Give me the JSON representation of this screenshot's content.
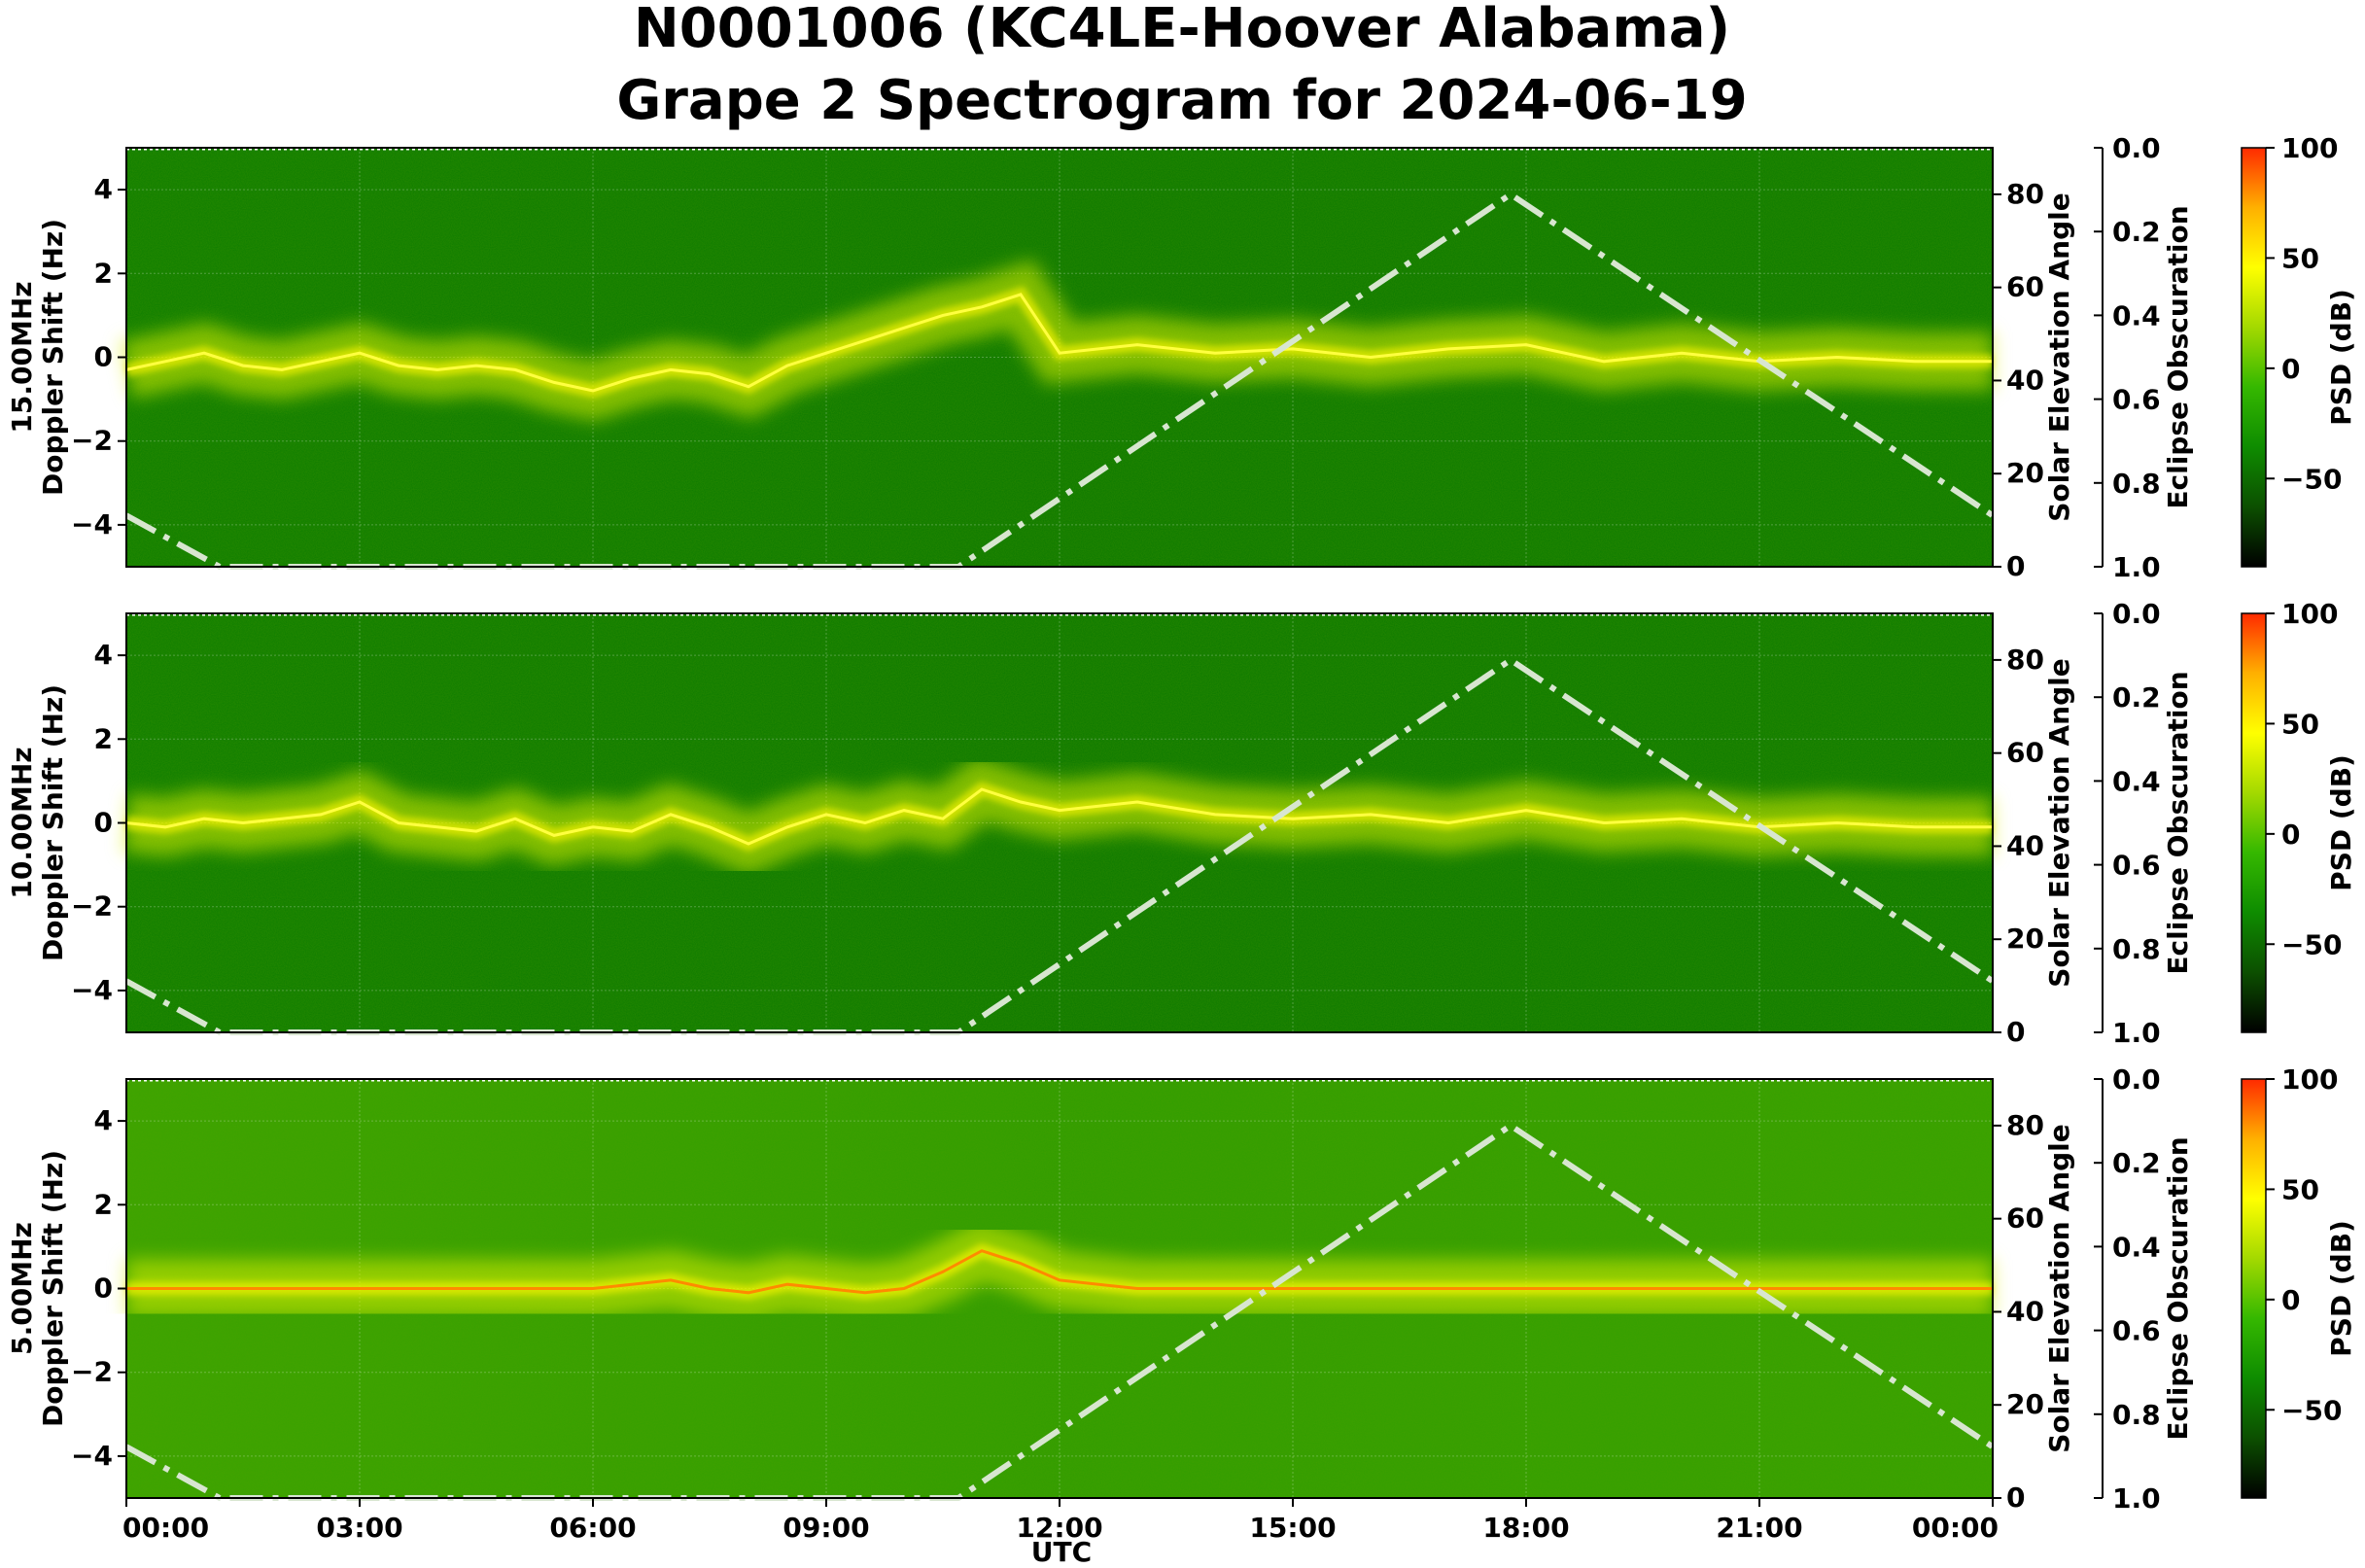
{
  "title": {
    "line1": "N0001006 (KC4LE-Hoover Alabama)",
    "line2": "Grape 2 Spectrogram for 2024-06-19"
  },
  "colors": {
    "background_green": "#0a7a00",
    "signal_yellow": "#f2f200",
    "solar_curve": "#d8e6d0",
    "colorbar": [
      "#000000",
      "#0c4f00",
      "#0e8c00",
      "#35b800",
      "#a3d900",
      "#ffff00",
      "#ffb000",
      "#ff2a00"
    ]
  },
  "chart_data": [
    {
      "type": "heatmap",
      "panel": "15MHz",
      "ylabel_top": "15.00MHz",
      "ylabel": "Doppler Shift (Hz)",
      "right_label": "Solar Elevation Angle",
      "obscuration_label": "Eclipse Obscuration",
      "colorbar_label": "PSD (dB)",
      "background_level": "dark",
      "ylim": [
        -5,
        5
      ],
      "yticks": [
        4,
        2,
        0,
        -2,
        -4
      ],
      "elev_lim": [
        0,
        90
      ],
      "elev_ticks": [
        0,
        20,
        40,
        60,
        80
      ],
      "obsc_lim": [
        0.0,
        1.0
      ],
      "obsc_ticks": [
        "0.0",
        "0.2",
        "0.4",
        "0.6",
        "0.8",
        "1.0"
      ],
      "cbar_lim": [
        -90,
        100
      ],
      "cbar_ticks": [
        100,
        50,
        0,
        -50
      ],
      "doppler_trace": {
        "hours": [
          0,
          0.5,
          1,
          1.5,
          2,
          2.5,
          3,
          3.5,
          4,
          4.5,
          5,
          5.5,
          6,
          6.5,
          7,
          7.5,
          8,
          8.5,
          9,
          9.5,
          10,
          10.5,
          11,
          11.5,
          12,
          13,
          14,
          15,
          16,
          17,
          18,
          19,
          20,
          21,
          22,
          23,
          24
        ],
        "hz": [
          -0.3,
          -0.1,
          0.1,
          -0.2,
          -0.3,
          -0.1,
          0.1,
          -0.2,
          -0.3,
          -0.2,
          -0.3,
          -0.6,
          -0.8,
          -0.5,
          -0.3,
          -0.4,
          -0.7,
          -0.2,
          0.1,
          0.4,
          0.7,
          1.0,
          1.2,
          1.5,
          0.1,
          0.3,
          0.1,
          0.2,
          0.0,
          0.2,
          0.3,
          -0.1,
          0.1,
          -0.1,
          0.0,
          -0.1,
          -0.1
        ]
      },
      "solar_elevation": {
        "hours": [
          0,
          1.2,
          10.7,
          17.8,
          24
        ],
        "deg": [
          11,
          0,
          0,
          80,
          11
        ]
      }
    },
    {
      "type": "heatmap",
      "panel": "10MHz",
      "ylabel_top": "10.00MHz",
      "ylabel": "Doppler Shift (Hz)",
      "right_label": "Solar Elevation Angle",
      "obscuration_label": "Eclipse Obscuration",
      "colorbar_label": "PSD (dB)",
      "background_level": "dark",
      "ylim": [
        -5,
        5
      ],
      "yticks": [
        4,
        2,
        0,
        -2,
        -4
      ],
      "elev_lim": [
        0,
        90
      ],
      "elev_ticks": [
        0,
        20,
        40,
        60,
        80
      ],
      "obsc_lim": [
        0.0,
        1.0
      ],
      "obsc_ticks": [
        "0.0",
        "0.2",
        "0.4",
        "0.6",
        "0.8",
        "1.0"
      ],
      "cbar_lim": [
        -90,
        100
      ],
      "cbar_ticks": [
        100,
        50,
        0,
        -50
      ],
      "doppler_trace": {
        "hours": [
          0,
          0.5,
          1,
          1.5,
          2,
          2.5,
          3,
          3.5,
          4,
          4.5,
          5,
          5.5,
          6,
          6.5,
          7,
          7.5,
          8,
          8.5,
          9,
          9.5,
          10,
          10.5,
          11,
          11.5,
          12,
          13,
          14,
          15,
          16,
          17,
          18,
          19,
          20,
          21,
          22,
          23,
          24
        ],
        "hz": [
          0.0,
          -0.1,
          0.1,
          0.0,
          0.1,
          0.2,
          0.5,
          0.0,
          -0.1,
          -0.2,
          0.1,
          -0.3,
          -0.1,
          -0.2,
          0.2,
          -0.1,
          -0.5,
          -0.1,
          0.2,
          0.0,
          0.3,
          0.1,
          0.8,
          0.5,
          0.3,
          0.5,
          0.2,
          0.1,
          0.2,
          0.0,
          0.3,
          0.0,
          0.1,
          -0.1,
          0.0,
          -0.1,
          -0.1
        ]
      },
      "solar_elevation": {
        "hours": [
          0,
          1.2,
          10.7,
          17.8,
          24
        ],
        "deg": [
          11,
          0,
          0,
          80,
          11
        ]
      }
    },
    {
      "type": "heatmap",
      "panel": "5MHz",
      "ylabel_top": "5.00MHz",
      "ylabel": "Doppler Shift (Hz)",
      "right_label": "Solar Elevation Angle",
      "obscuration_label": "Eclipse Obscuration",
      "colorbar_label": "PSD (dB)",
      "background_level": "light",
      "ylim": [
        -5,
        5
      ],
      "yticks": [
        4,
        2,
        0,
        -2,
        -4
      ],
      "elev_lim": [
        0,
        90
      ],
      "elev_ticks": [
        0,
        20,
        40,
        60,
        80
      ],
      "obsc_lim": [
        0.0,
        1.0
      ],
      "obsc_ticks": [
        "0.0",
        "0.2",
        "0.4",
        "0.6",
        "0.8",
        "1.0"
      ],
      "cbar_lim": [
        -90,
        100
      ],
      "cbar_ticks": [
        100,
        50,
        0,
        -50
      ],
      "doppler_trace": {
        "hours": [
          0,
          1,
          2,
          3,
          4,
          5,
          6,
          6.5,
          7,
          7.5,
          8,
          8.5,
          9,
          9.5,
          10,
          10.5,
          11,
          11.5,
          12,
          13,
          18,
          24
        ],
        "hz": [
          0.0,
          0.0,
          0.0,
          0.0,
          0.0,
          0.0,
          0.0,
          0.1,
          0.2,
          0.0,
          -0.1,
          0.1,
          0.0,
          -0.1,
          0.0,
          0.4,
          0.9,
          0.6,
          0.2,
          0.0,
          0.0,
          0.0
        ]
      },
      "solar_elevation": {
        "hours": [
          0,
          1.2,
          10.7,
          17.8,
          24
        ],
        "deg": [
          11,
          0,
          0,
          80,
          11
        ]
      }
    }
  ],
  "x_axis": {
    "label": "UTC",
    "ticks": [
      "00:00",
      "03:00",
      "06:00",
      "09:00",
      "12:00",
      "15:00",
      "18:00",
      "21:00",
      "00:00"
    ],
    "tick_hours": [
      0,
      3,
      6,
      9,
      12,
      15,
      18,
      21,
      24
    ]
  }
}
